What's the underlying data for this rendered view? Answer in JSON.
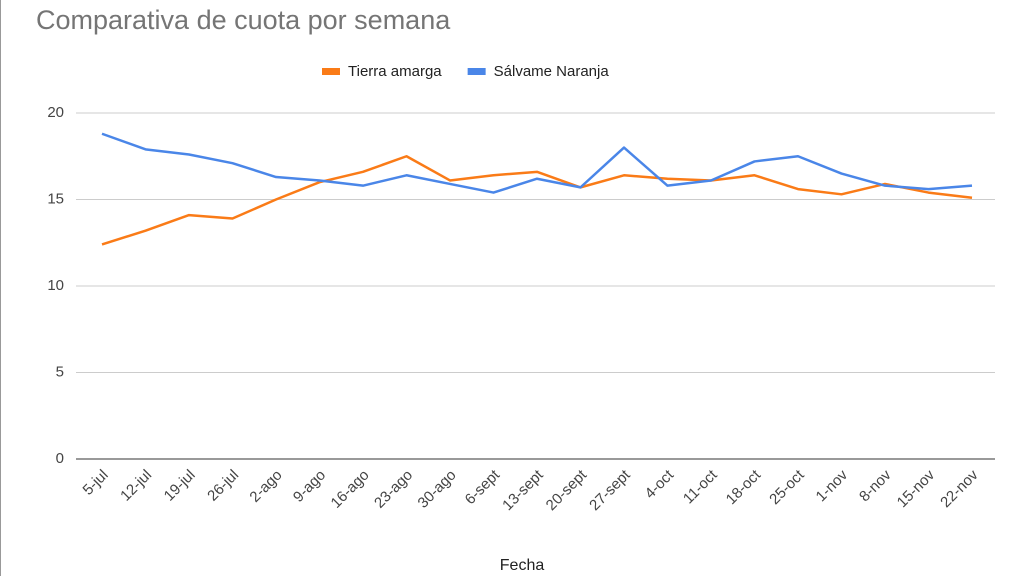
{
  "chart_data": {
    "type": "line",
    "title": "Comparativa de cuota por semana",
    "x_label": "Fecha",
    "categories": [
      "5-jul",
      "12-jul",
      "19-jul",
      "26-jul",
      "2-ago",
      "9-ago",
      "16-ago",
      "23-ago",
      "30-ago",
      "6-sept",
      "13-sept",
      "20-sept",
      "27-sept",
      "4-oct",
      "11-oct",
      "18-oct",
      "25-oct",
      "1-nov",
      "8-nov",
      "15-nov",
      "22-nov"
    ],
    "series": [
      {
        "name": "Tierra amarga",
        "color": "#fa7b17",
        "values": [
          12.4,
          13.2,
          14.1,
          13.9,
          15.0,
          16.0,
          16.6,
          17.5,
          16.1,
          16.4,
          16.6,
          15.7,
          16.4,
          16.2,
          16.1,
          16.4,
          15.6,
          15.3,
          15.9,
          15.4,
          15.1
        ]
      },
      {
        "name": "Sálvame Naranja",
        "color": "#4a86e8",
        "values": [
          18.8,
          17.9,
          17.6,
          17.1,
          16.3,
          16.1,
          15.8,
          16.4,
          15.9,
          15.4,
          16.2,
          15.7,
          18.0,
          15.8,
          16.1,
          17.2,
          17.5,
          16.5,
          15.8,
          15.6,
          15.8
        ]
      }
    ],
    "ylim": [
      0,
      20
    ],
    "yticks": [
      0,
      5,
      10,
      15,
      20
    ],
    "grid": true,
    "legend": "top"
  }
}
